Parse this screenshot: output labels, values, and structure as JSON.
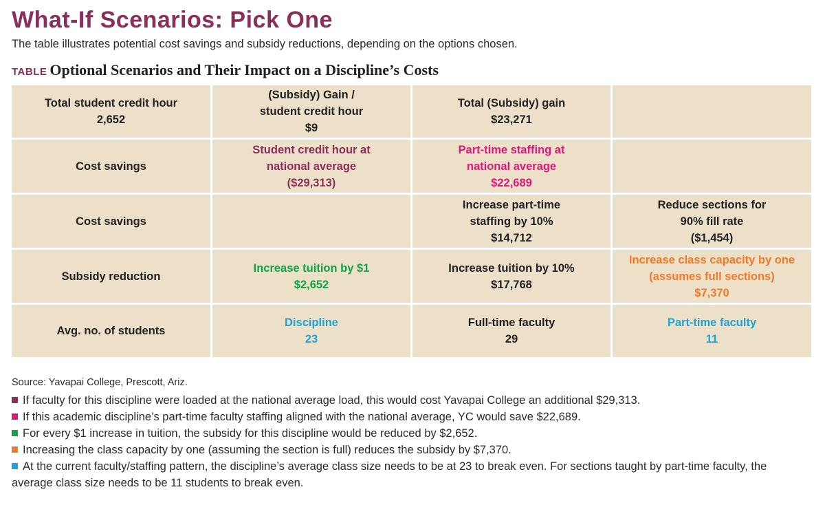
{
  "colors": {
    "title": "#8a2f5a",
    "cell_bg": "#ece0c8",
    "plum": "#8a2f5a",
    "magenta": "#e0177a",
    "green": "#13a24a",
    "orange": "#f07a2a",
    "blue": "#1ea3d8",
    "text": "#222222"
  },
  "header": {
    "title": "What-If Scenarios: Pick One",
    "subtitle": "The table illustrates potential cost savings and subsidy reductions, depending on the options chosen."
  },
  "table": {
    "caption_tag": "TABLE",
    "caption": "Optional Scenarios and Their Impact on a Discipline’s Costs",
    "rows": [
      [
        {
          "lines": [
            "Total student credit hour",
            "2,652"
          ],
          "color": ""
        },
        {
          "lines": [
            "(Subsidy) Gain /",
            "student credit hour",
            "$9"
          ],
          "color": ""
        },
        {
          "lines": [
            "Total (Subsidy) gain",
            "$23,271"
          ],
          "color": ""
        },
        {
          "lines": [],
          "color": ""
        }
      ],
      [
        {
          "lines": [
            "Cost savings"
          ],
          "color": ""
        },
        {
          "lines": [
            "Student credit hour at",
            "national average",
            "($29,313)"
          ],
          "color": "plum"
        },
        {
          "lines": [
            "Part-time staffing at",
            "national average",
            "$22,689"
          ],
          "color": "magenta"
        },
        {
          "lines": [],
          "color": ""
        }
      ],
      [
        {
          "lines": [
            "Cost savings"
          ],
          "color": ""
        },
        {
          "lines": [],
          "color": ""
        },
        {
          "lines": [
            "Increase part-time",
            "staffing by 10%",
            "$14,712"
          ],
          "color": ""
        },
        {
          "lines": [
            "Reduce sections for",
            "90% fill rate",
            "($1,454)"
          ],
          "color": ""
        }
      ],
      [
        {
          "lines": [
            "Subsidy reduction"
          ],
          "color": ""
        },
        {
          "lines": [
            "Increase tuition by $1",
            "$2,652"
          ],
          "color": "green"
        },
        {
          "lines": [
            "Increase tuition by 10%",
            "$17,768"
          ],
          "color": ""
        },
        {
          "lines": [
            "Increase class capacity by one",
            "(assumes full sections)",
            "$7,370"
          ],
          "color": "orange"
        }
      ],
      [
        {
          "lines": [
            "Avg. no. of students"
          ],
          "color": ""
        },
        {
          "lines": [
            "Discipline",
            "23"
          ],
          "color": "blue"
        },
        {
          "lines": [
            "Full-time faculty",
            "29"
          ],
          "color": ""
        },
        {
          "lines": [
            "Part-time faculty",
            "11"
          ],
          "color": "blue"
        }
      ]
    ]
  },
  "source": "Source: Yavapai College, Prescott, Ariz.",
  "notes": [
    {
      "color": "plum",
      "text": "If faculty for this discipline were loaded at the national average load, this would cost Yavapai College an additional $29,313."
    },
    {
      "color": "magenta",
      "text": "If this academic discipline’s part-time faculty staffing aligned with the national average, YC would save $22,689."
    },
    {
      "color": "green",
      "text": "For every $1 increase in tuition, the subsidy for this discipline would be reduced by $2,652."
    },
    {
      "color": "orange",
      "text": "Increasing the class capacity by one (assuming the section is full) reduces the subsidy by $7,370."
    },
    {
      "color": "blue",
      "text": "At the current faculty/staffing pattern, the discipline’s average class size needs to be at 23 to break even. For sections taught by part-time faculty, the average class size needs to be 11 students to break even."
    }
  ]
}
